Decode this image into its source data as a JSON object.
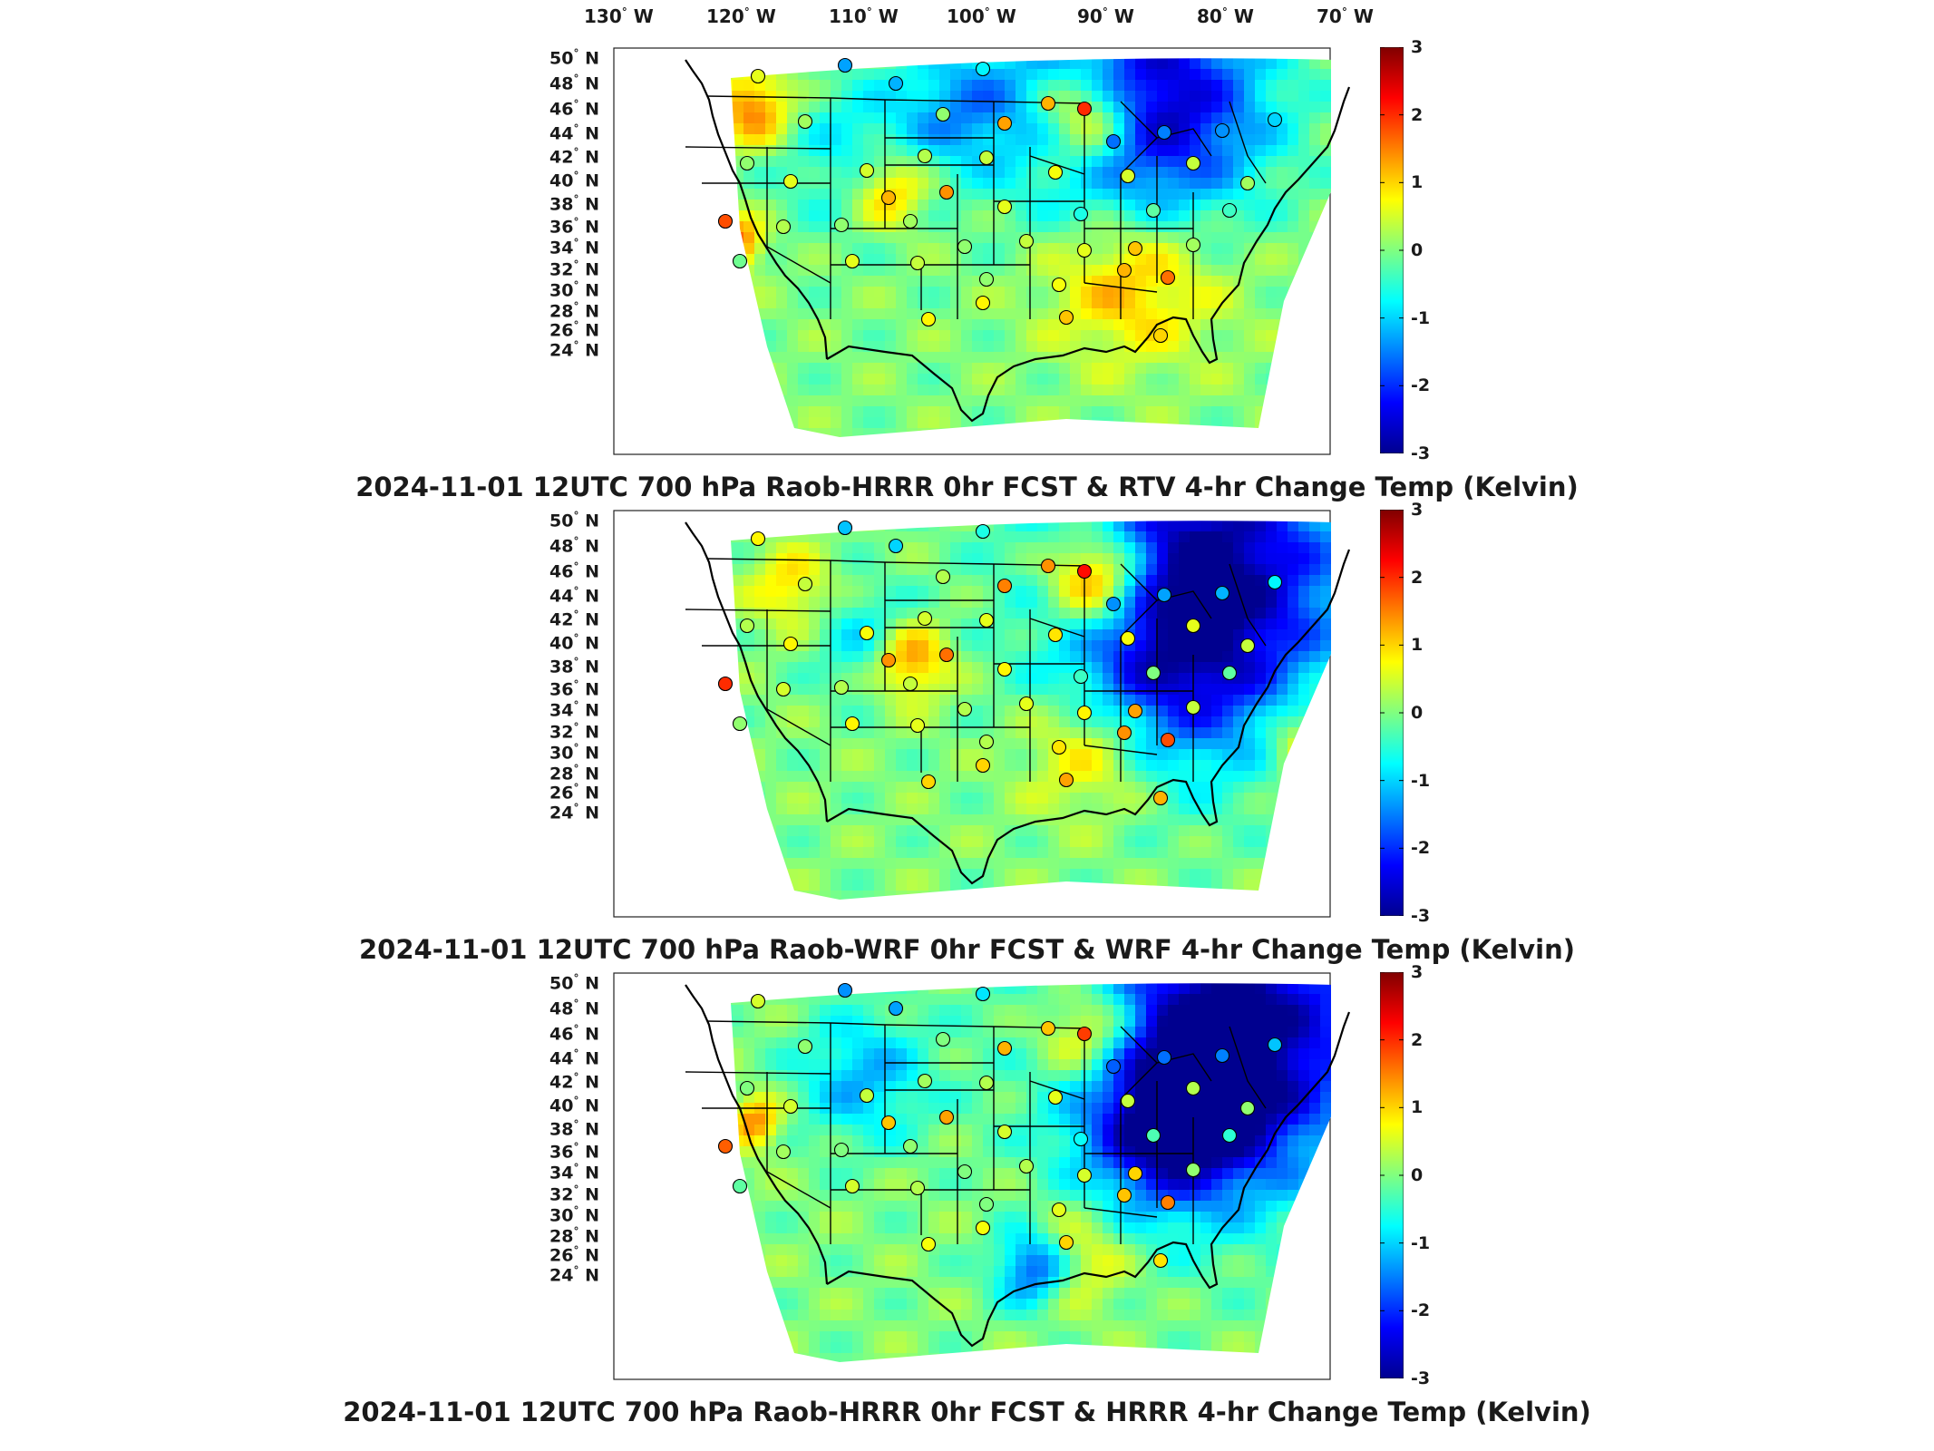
{
  "longitude_labels": [
    "130",
    "120",
    "110",
    "100",
    "90",
    "80",
    "70"
  ],
  "lon_suffix": "W",
  "latitude_labels": [
    "50",
    "48",
    "46",
    "44",
    "42",
    "40",
    "38",
    "36",
    "34",
    "32",
    "30",
    "28",
    "26",
    "24"
  ],
  "lat_suffix": "N",
  "colorbar": {
    "ticks": [
      "3",
      "2",
      "1",
      "0",
      "-1",
      "-2",
      "-3"
    ],
    "range": [
      -3,
      3
    ],
    "colors": [
      "#00008f",
      "#0000ff",
      "#0080ff",
      "#00ffff",
      "#80ff80",
      "#ffff00",
      "#ff8000",
      "#ff0000",
      "#800000"
    ]
  },
  "panels": [
    {
      "title": "2024-11-01 12UTC 700 hPa Raob-HRRR 0hr FCST & RTV 4-hr Change Temp (Kelvin)"
    },
    {
      "title": "2024-11-01 12UTC 700 hPa Raob-WRF 0hr FCST & WRF 4-hr Change Temp (Kelvin)"
    },
    {
      "title": "2024-11-01 12UTC 700 hPa Raob-HRRR 0hr FCST & HRRR 4-hr Change Temp (Kelvin)"
    }
  ]
}
